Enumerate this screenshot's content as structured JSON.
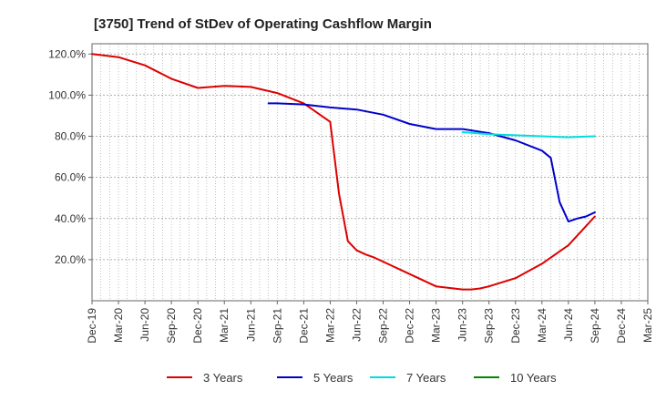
{
  "chart_data": {
    "type": "line",
    "title": "[3750]  Trend of StDev of Operating Cashflow Margin",
    "xlabel": "",
    "ylabel": "",
    "ylim": [
      0,
      125
    ],
    "y_ticks": [
      20,
      40,
      60,
      80,
      100,
      120
    ],
    "y_tick_labels": [
      "20.0%",
      "40.0%",
      "60.0%",
      "80.0%",
      "100.0%",
      "120.0%"
    ],
    "x_ticks": [
      "Dec-19",
      "Mar-20",
      "Jun-20",
      "Sep-20",
      "Dec-20",
      "Mar-21",
      "Jun-21",
      "Sep-21",
      "Dec-21",
      "Mar-22",
      "Jun-22",
      "Sep-22",
      "Dec-22",
      "Mar-23",
      "Jun-23",
      "Sep-23",
      "Dec-23",
      "Mar-24",
      "Jun-24",
      "Sep-24",
      "Dec-24",
      "Mar-25"
    ],
    "grid": true,
    "legend_position": "bottom",
    "series": [
      {
        "name": "3 Years",
        "color": "#dd0000",
        "x": [
          "Dec-19",
          "Mar-20",
          "Jun-20",
          "Sep-20",
          "Dec-20",
          "Mar-21",
          "Jun-21",
          "Sep-21",
          "Dec-21",
          "Mar-22",
          "Apr-22",
          "May-22",
          "Jun-22",
          "Jul-22",
          "Aug-22",
          "Sep-22",
          "Dec-22",
          "Mar-23",
          "Jun-23",
          "Jul-23",
          "Aug-23",
          "Sep-23",
          "Dec-23",
          "Mar-24",
          "Jun-24",
          "Sep-24"
        ],
        "values": [
          120,
          118.5,
          114.5,
          108,
          103.5,
          104.5,
          104,
          101,
          96,
          87,
          52,
          29,
          24.5,
          22.5,
          21,
          19,
          13,
          7,
          5.5,
          5.5,
          6,
          7,
          11,
          18,
          27,
          41
        ]
      },
      {
        "name": "5 Years",
        "color": "#0000cc",
        "x": [
          "Aug-21",
          "Sep-21",
          "Dec-21",
          "Mar-22",
          "Jun-22",
          "Sep-22",
          "Dec-22",
          "Mar-23",
          "Jun-23",
          "Sep-23",
          "Dec-23",
          "Mar-24",
          "Apr-24",
          "May-24",
          "Jun-24",
          "Jul-24",
          "Aug-24",
          "Sep-24"
        ],
        "values": [
          96,
          96,
          95.5,
          94,
          93,
          90.5,
          86,
          83.5,
          83.5,
          81.5,
          78,
          73,
          69.5,
          48,
          38.5,
          40,
          41,
          43
        ]
      },
      {
        "name": "7 Years",
        "color": "#00dddd",
        "x": [
          "Jun-23",
          "Sep-23",
          "Dec-23",
          "Mar-24",
          "Jun-24",
          "Sep-24"
        ],
        "values": [
          82,
          81,
          80.5,
          80,
          79.5,
          80
        ]
      },
      {
        "name": "10 Years",
        "color": "#008800",
        "x": [],
        "values": []
      }
    ]
  }
}
